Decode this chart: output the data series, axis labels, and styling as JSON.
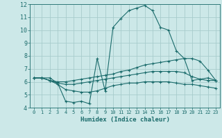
{
  "xlabel": "Humidex (Indice chaleur)",
  "xlim": [
    -0.5,
    23.5
  ],
  "ylim": [
    4,
    12
  ],
  "yticks": [
    4,
    5,
    6,
    7,
    8,
    9,
    10,
    11,
    12
  ],
  "xticks": [
    0,
    1,
    2,
    3,
    4,
    5,
    6,
    7,
    8,
    9,
    10,
    11,
    12,
    13,
    14,
    15,
    16,
    17,
    18,
    19,
    20,
    21,
    22,
    23
  ],
  "background_color": "#cce8e8",
  "grid_color": "#a8cccc",
  "line_color": "#1a6b6b",
  "series1_x": [
    0,
    1,
    2,
    3,
    4,
    5,
    6,
    7,
    8,
    9,
    10,
    11,
    12,
    13,
    14,
    15,
    16,
    17,
    18,
    19,
    20,
    21,
    22,
    23
  ],
  "series1_y": [
    6.3,
    6.3,
    6.3,
    5.9,
    4.5,
    4.4,
    4.5,
    4.3,
    7.8,
    5.3,
    10.2,
    10.9,
    11.5,
    11.7,
    11.9,
    11.5,
    10.2,
    10.0,
    8.4,
    7.8,
    6.1,
    6.2,
    6.3,
    6.1
  ],
  "series2_x": [
    0,
    1,
    2,
    3,
    4,
    5,
    6,
    7,
    8,
    9,
    10,
    11,
    12,
    13,
    14,
    15,
    16,
    17,
    18,
    19,
    20,
    21,
    22,
    23
  ],
  "series2_y": [
    6.3,
    6.3,
    6.1,
    6.0,
    6.0,
    6.1,
    6.2,
    6.3,
    6.4,
    6.5,
    6.6,
    6.8,
    6.9,
    7.1,
    7.3,
    7.4,
    7.5,
    7.6,
    7.7,
    7.8,
    7.8,
    7.6,
    6.9,
    6.1
  ],
  "series3_x": [
    0,
    1,
    2,
    3,
    4,
    5,
    6,
    7,
    8,
    9,
    10,
    11,
    12,
    13,
    14,
    15,
    16,
    17,
    18,
    19,
    20,
    21,
    22,
    23
  ],
  "series3_y": [
    6.3,
    6.3,
    6.1,
    5.9,
    5.8,
    5.8,
    5.9,
    6.0,
    6.1,
    6.2,
    6.3,
    6.4,
    6.5,
    6.6,
    6.7,
    6.8,
    6.8,
    6.8,
    6.8,
    6.7,
    6.4,
    6.2,
    6.1,
    6.1
  ],
  "series4_x": [
    0,
    1,
    2,
    3,
    4,
    5,
    6,
    7,
    8,
    9,
    10,
    11,
    12,
    13,
    14,
    15,
    16,
    17,
    18,
    19,
    20,
    21,
    22,
    23
  ],
  "series4_y": [
    6.3,
    6.3,
    6.1,
    5.8,
    5.4,
    5.3,
    5.2,
    5.2,
    5.3,
    5.5,
    5.7,
    5.8,
    5.9,
    5.9,
    6.0,
    6.0,
    6.0,
    6.0,
    5.9,
    5.8,
    5.8,
    5.7,
    5.6,
    5.5
  ]
}
